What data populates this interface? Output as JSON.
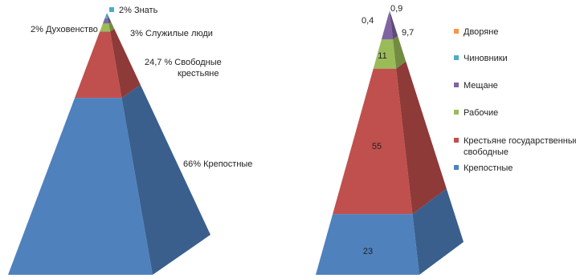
{
  "chart_data": [
    {
      "type": "pyramid",
      "title": "",
      "series": [
        {
          "name": "Крепостные",
          "value": 66,
          "label": "66% Крепостные",
          "front": "#4F81BD",
          "side": "#3A5F8C"
        },
        {
          "name": "Свободные крестьяне",
          "value": 24.7,
          "label_lines": [
            "24,7 % Свободные",
            "крестьяне"
          ],
          "front": "#C0504D",
          "side": "#8E3A38"
        },
        {
          "name": "Служилые люди",
          "value": 3,
          "label": "3% Служилые люди",
          "front": "#9BBB59",
          "side": "#728B41"
        },
        {
          "name": "Духовенство",
          "value": 2,
          "label": "2% Духовенство",
          "front": "#8064A2",
          "side": "#5F4A79"
        },
        {
          "name": "Знать",
          "value": 2,
          "label": "2% Знать",
          "front": "#4BACC6",
          "side": "#378094"
        }
      ],
      "legend": {
        "marker_color": "#4BACC6",
        "label": "2% Знать"
      }
    },
    {
      "type": "pyramid",
      "title": "",
      "series": [
        {
          "name": "Крепостные",
          "value": 23,
          "front": "#4F81BD",
          "side": "#3A5F8C"
        },
        {
          "name": "Крестьяне государственные и свободные",
          "value": 55,
          "front": "#C0504D",
          "side": "#8E3A38"
        },
        {
          "name": "Рабочие",
          "value": 11,
          "front": "#9BBB59",
          "side": "#728B41"
        },
        {
          "name": "Мещане",
          "value": 9.7,
          "front": "#8064A2",
          "side": "#5F4A79"
        },
        {
          "name": "Чиновники",
          "value": 0.9,
          "front": "#4BACC6",
          "side": "#378094"
        },
        {
          "name": "Дворяне",
          "value": 0.4,
          "front": "#F79646",
          "side": "#B86F34"
        }
      ],
      "data_labels": [
        "23",
        "55",
        "11",
        "9,7",
        "0,9",
        "0,4"
      ],
      "legend": {
        "placement": "right",
        "entries": [
          {
            "lines": [
              "Дворяне"
            ],
            "color": "#F79646"
          },
          {
            "lines": [
              "Чиновники"
            ],
            "color": "#4BACC6"
          },
          {
            "lines": [
              "Мещане"
            ],
            "color": "#8064A2"
          },
          {
            "lines": [
              "Рабочие"
            ],
            "color": "#9BBB59"
          },
          {
            "lines": [
              "Крестьяне государственные и",
              "свободные"
            ],
            "color": "#C0504D"
          },
          {
            "lines": [
              "Крепостные"
            ],
            "color": "#4F81BD"
          }
        ]
      }
    }
  ]
}
